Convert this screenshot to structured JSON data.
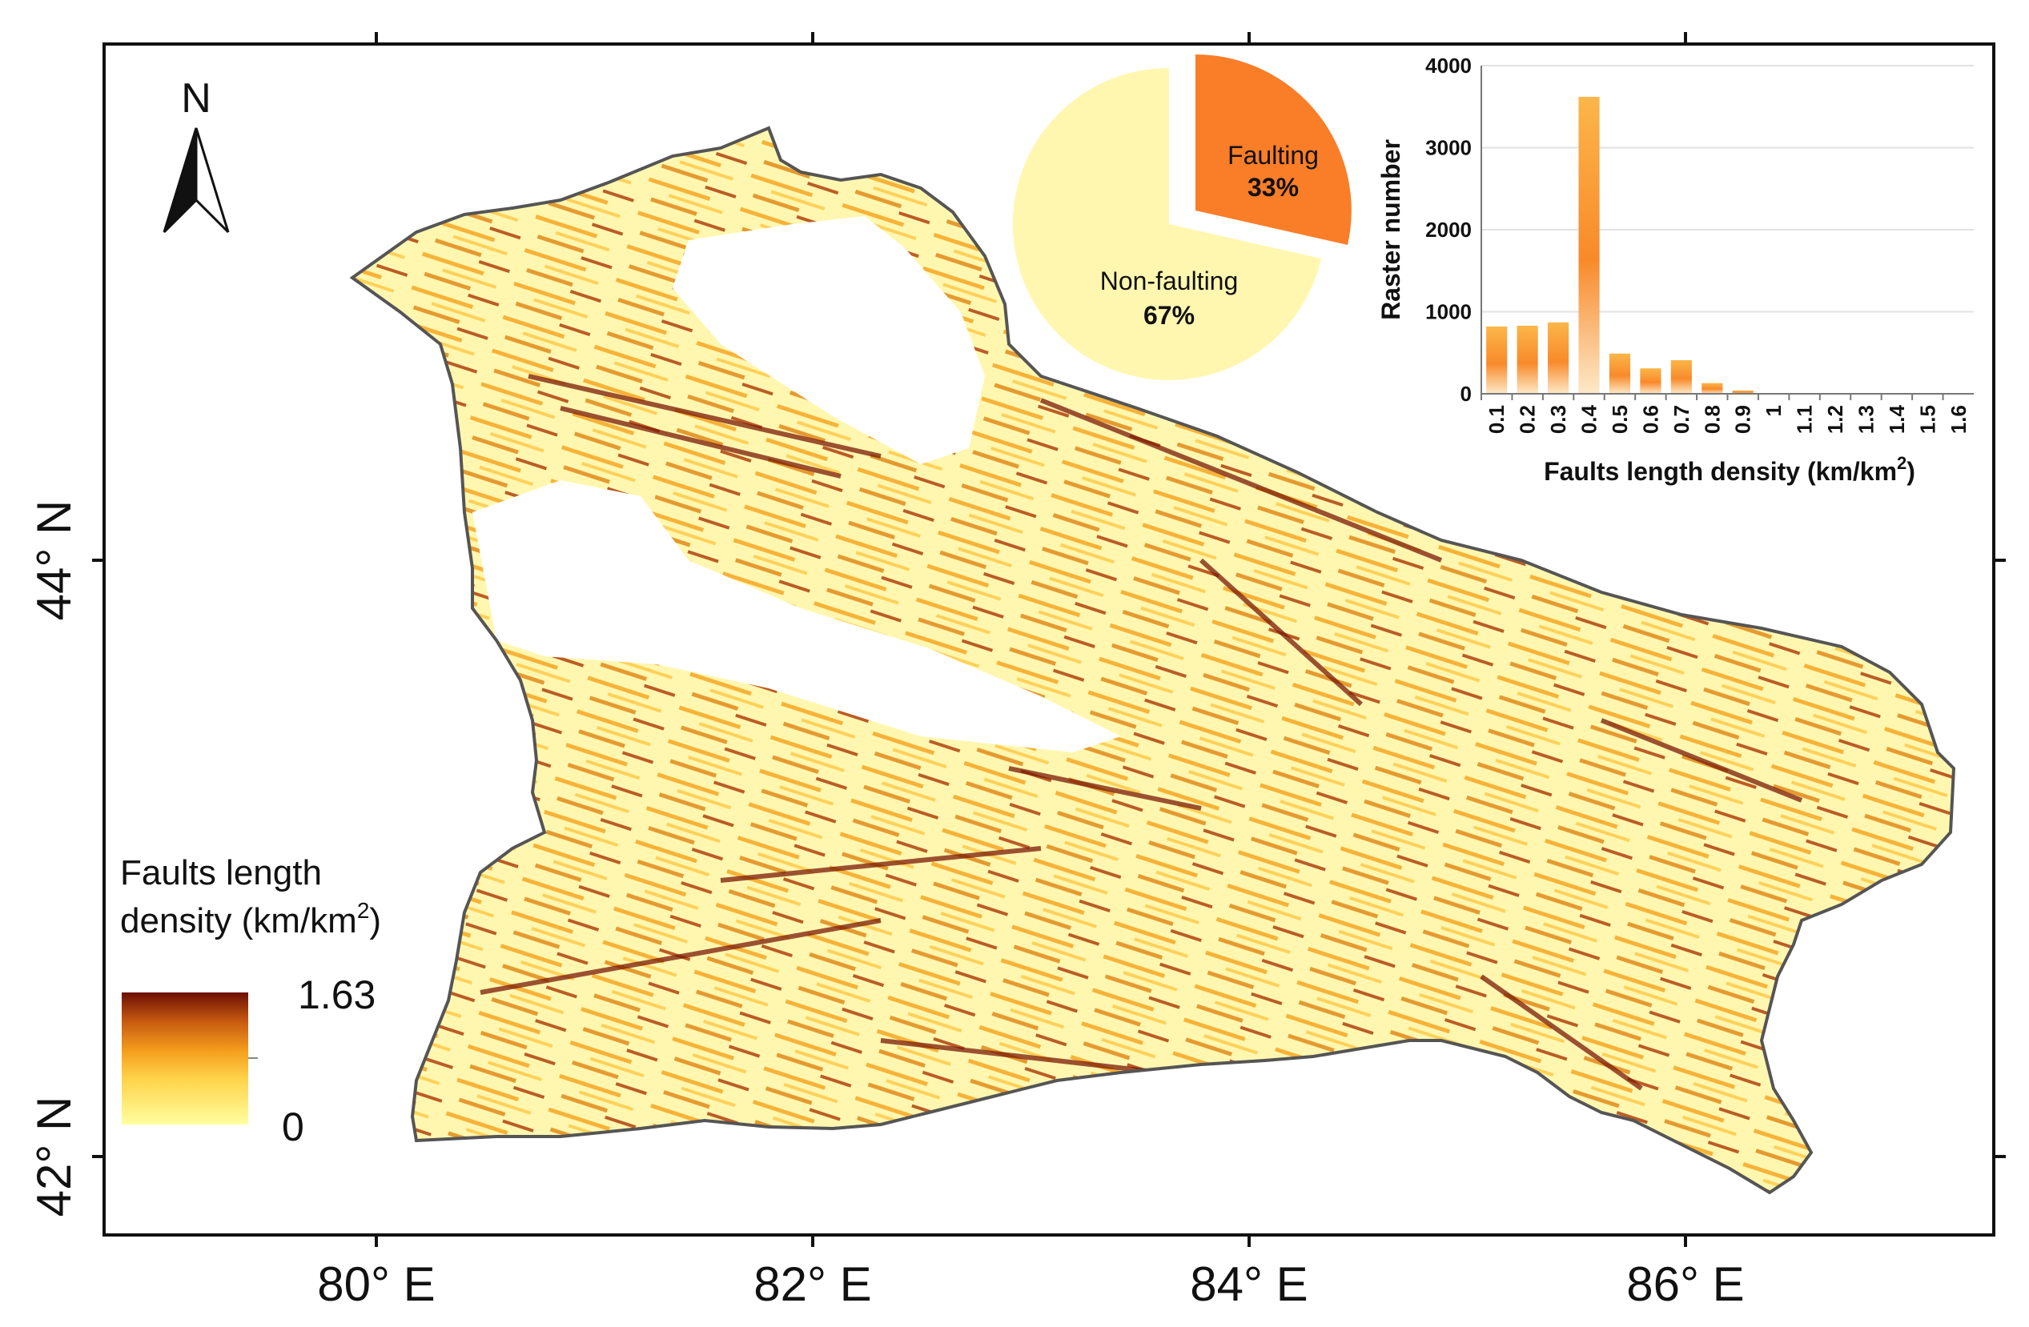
{
  "map": {
    "north_arrow_label": "N",
    "lon_labels": [
      "80° E",
      "82° E",
      "84° E",
      "86° E"
    ],
    "lat_labels": [
      "44° N",
      "42° N"
    ]
  },
  "legend": {
    "title_line1": "Faults length",
    "title_line2": "density  (km/km",
    "title_sup": "2",
    "title_close": ")",
    "max_label": "1.63",
    "min_label": "0",
    "colors": [
      "#ffff9e",
      "#ffd24a",
      "#f5a01e",
      "#c85a0f",
      "#6b0f05"
    ]
  },
  "pie": {
    "type": "pie",
    "slices": [
      {
        "label": "Faulting",
        "pct_label": "33%",
        "value": 33,
        "color": "#fa7d28",
        "exploded": true
      },
      {
        "label": "Non-faulting",
        "pct_label": "67%",
        "value": 67,
        "color": "#fff7b0",
        "exploded": false
      }
    ]
  },
  "chart_data": {
    "type": "bar",
    "categories": [
      "0.1",
      "0.2",
      "0.3",
      "0.4",
      "0.5",
      "0.6",
      "0.7",
      "0.8",
      "0.9",
      "1",
      "1.1",
      "1.2",
      "1.3",
      "1.4",
      "1.5",
      "1.6"
    ],
    "values": [
      820,
      830,
      870,
      3620,
      490,
      310,
      410,
      130,
      40,
      5,
      3,
      2,
      1,
      1,
      1,
      1
    ],
    "xlabel": "Faults length density (km/km",
    "xlabel_sup": "2",
    "xlabel_close": ")",
    "ylabel": "Raster number",
    "ylim": [
      0,
      4000
    ],
    "yticks": [
      0,
      1000,
      2000,
      3000,
      4000
    ],
    "grid": true
  }
}
